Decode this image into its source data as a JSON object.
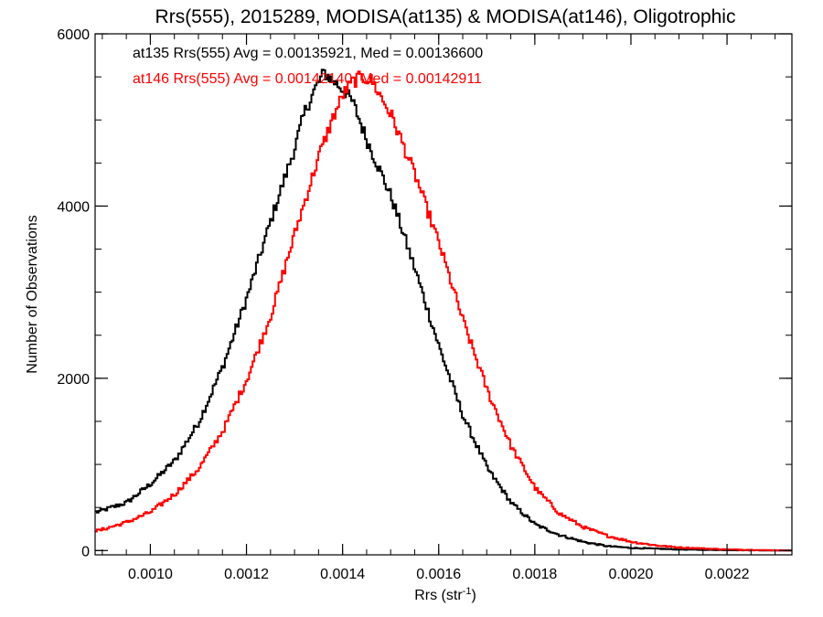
{
  "chart_data": {
    "type": "line",
    "title": "Rrs(555), 2015289, MODISA(at135) & MODISA(at146), Oligotrophic",
    "xlabel_main": "Rrs (str",
    "xlabel_sup": "-1",
    "xlabel_close": ")",
    "ylabel": "Number of Observations",
    "xlim": [
      0.000885,
      0.002335
    ],
    "ylim": [
      -50,
      6000
    ],
    "x_ticks": [
      0.001,
      0.0012,
      0.0014,
      0.0016,
      0.0018,
      0.002,
      0.0022
    ],
    "x_tick_labels": [
      "0.0010",
      "0.0012",
      "0.0014",
      "0.0016",
      "0.0018",
      "0.0020",
      "0.0022"
    ],
    "x_minor_step": 5e-05,
    "y_ticks": [
      0,
      2000,
      4000,
      6000
    ],
    "y_tick_labels": [
      "0",
      "2000",
      "4000",
      "6000"
    ],
    "y_minor_step": 500,
    "grid": false,
    "annotations": [
      {
        "text": "at135 Rrs(555) Avg = 0.00135921, Med = 0.00136600",
        "color": "#000000"
      },
      {
        "text": "at146 Rrs(555) Avg = 0.00142140, Med = 0.00142911",
        "color": "#ff0000"
      }
    ],
    "series": [
      {
        "name": "at135",
        "color": "#000000",
        "step": true,
        "x": [
          0.00089,
          0.00095,
          0.001,
          0.00105,
          0.0011,
          0.00115,
          0.0012,
          0.00125,
          0.0013,
          0.00132,
          0.00134,
          0.00136,
          0.00138,
          0.0014,
          0.00142,
          0.00145,
          0.0015,
          0.00155,
          0.0016,
          0.00165,
          0.0017,
          0.00175,
          0.0018,
          0.00185,
          0.0019,
          0.00195,
          0.002,
          0.0021,
          0.0022,
          0.00233
        ],
        "y": [
          450,
          560,
          780,
          1050,
          1500,
          2150,
          2950,
          3850,
          4700,
          5100,
          5350,
          5550,
          5450,
          5350,
          5200,
          4750,
          4100,
          3250,
          2350,
          1550,
          950,
          550,
          300,
          180,
          100,
          50,
          30,
          12,
          5,
          0
        ]
      },
      {
        "name": "at146",
        "color": "#ff0000",
        "step": true,
        "x": [
          0.00089,
          0.00095,
          0.001,
          0.00105,
          0.0011,
          0.00115,
          0.0012,
          0.00125,
          0.0013,
          0.00135,
          0.00138,
          0.0014,
          0.00142,
          0.00144,
          0.00146,
          0.0015,
          0.00155,
          0.0016,
          0.00165,
          0.0017,
          0.00175,
          0.0018,
          0.00185,
          0.0019,
          0.00195,
          0.002,
          0.00205,
          0.0021,
          0.0022,
          0.00233
        ],
        "y": [
          230,
          330,
          450,
          660,
          960,
          1400,
          2000,
          2750,
          3700,
          4600,
          5050,
          5300,
          5450,
          5500,
          5450,
          5050,
          4350,
          3550,
          2650,
          1850,
          1200,
          720,
          430,
          270,
          170,
          100,
          60,
          35,
          12,
          0
        ]
      }
    ]
  }
}
